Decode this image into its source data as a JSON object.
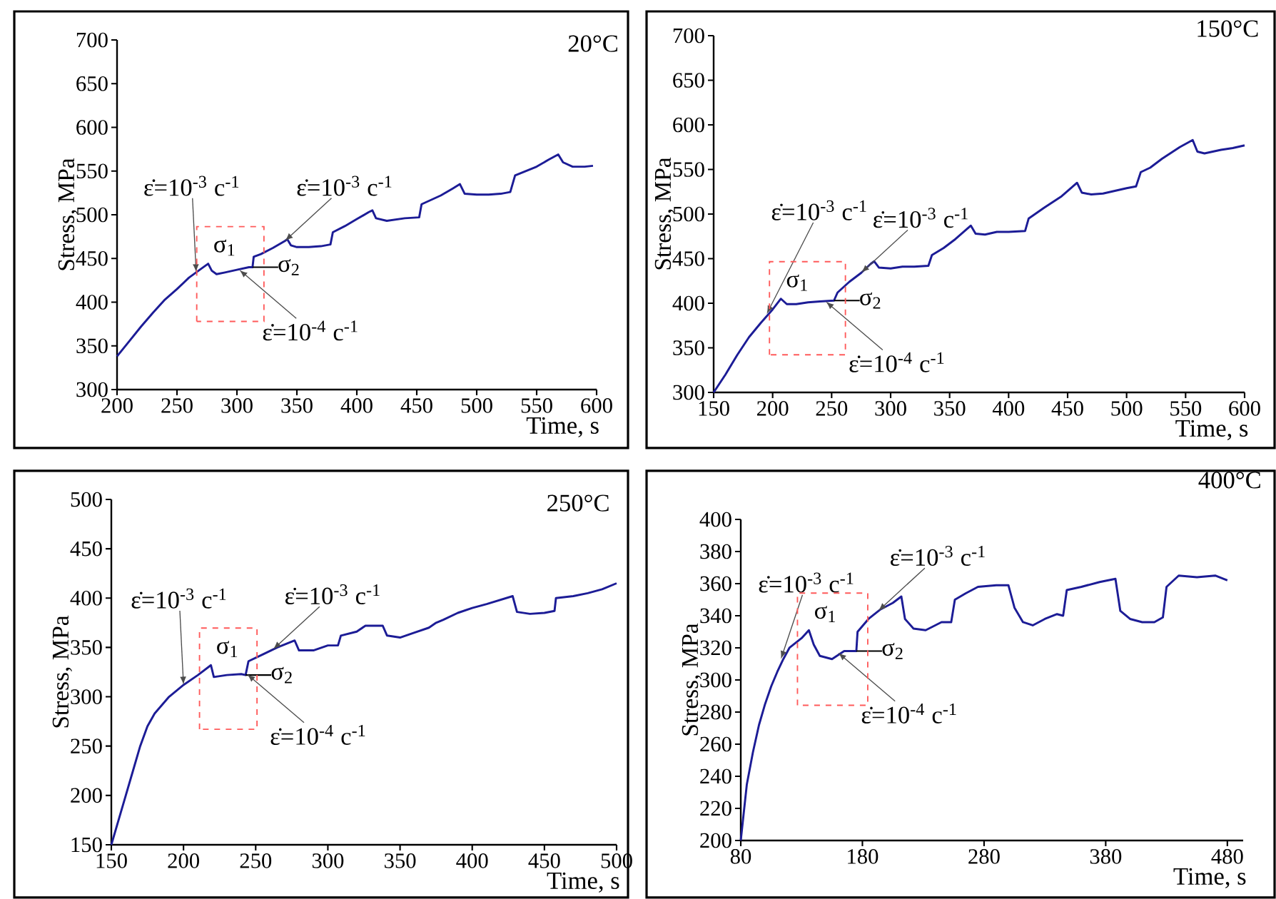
{
  "chart_data": [
    {
      "type": "line",
      "title": "20°C",
      "xlabel": "Time, s",
      "ylabel": "Stress, MPa",
      "color": "#1c1c96",
      "xlim": [
        200,
        600
      ],
      "ylim": [
        300,
        700
      ],
      "xticks": [
        200,
        250,
        300,
        350,
        400,
        450,
        500,
        550,
        600
      ],
      "yticks": [
        300,
        350,
        400,
        450,
        500,
        550,
        600,
        650,
        700
      ],
      "x": [
        200,
        210,
        220,
        230,
        240,
        250,
        260,
        270,
        276,
        279,
        283,
        290,
        300,
        310,
        313,
        314,
        320,
        330,
        340,
        342,
        345,
        350,
        360,
        370,
        378,
        380,
        390,
        400,
        410,
        413,
        416,
        425,
        440,
        452,
        454,
        470,
        480,
        486,
        490,
        500,
        510,
        520,
        528,
        532,
        550,
        560,
        568,
        572,
        580,
        590,
        597
      ],
      "values": [
        338,
        355,
        372,
        388,
        403,
        415,
        428,
        438,
        444,
        436,
        432,
        434,
        437,
        440,
        440,
        452,
        455,
        462,
        470,
        472,
        465,
        463,
        463,
        464,
        466,
        480,
        487,
        495,
        503,
        505,
        496,
        493,
        496,
        497,
        512,
        522,
        530,
        535,
        524,
        523,
        523,
        524,
        526,
        545,
        555,
        563,
        569,
        560,
        555,
        555,
        556
      ],
      "annotations": [
        {
          "text": "ε̇=10$^{-3}$ c$^{-1}$",
          "x": 266,
          "y": 434
        },
        {
          "text": "σ$_{1}$",
          "x": 276,
          "y": 444
        },
        {
          "text": "σ$_{2}$",
          "x": 313,
          "y": 440
        },
        {
          "text": "ε̇=10$^{-4}$ c$^{-1}$",
          "x": 302,
          "y": 437
        },
        {
          "text": "ε̇=10$^{-3}$ c$^{-1}$",
          "x": 340,
          "y": 470
        }
      ]
    },
    {
      "type": "line",
      "title": "150°C",
      "xlabel": "Time, s",
      "ylabel": "Stress, MPa",
      "color": "#1c1c96",
      "xlim": [
        150,
        600
      ],
      "ylim": [
        300,
        700
      ],
      "xticks": [
        150,
        200,
        250,
        300,
        350,
        400,
        450,
        500,
        550,
        600
      ],
      "yticks": [
        300,
        350,
        400,
        450,
        500,
        550,
        600,
        650,
        700
      ],
      "x": [
        150,
        160,
        170,
        180,
        190,
        200,
        207,
        212,
        220,
        230,
        240,
        252,
        255,
        265,
        275,
        283,
        286,
        290,
        300,
        310,
        320,
        332,
        335,
        345,
        355,
        368,
        372,
        380,
        390,
        400,
        414,
        417,
        430,
        445,
        458,
        462,
        470,
        480,
        490,
        500,
        508,
        512,
        520,
        530,
        545,
        556,
        560,
        566,
        580,
        590,
        600
      ],
      "values": [
        300,
        320,
        342,
        362,
        378,
        393,
        405,
        399,
        399,
        401,
        402,
        403,
        412,
        424,
        434,
        444,
        447,
        440,
        439,
        441,
        441,
        442,
        454,
        462,
        472,
        487,
        478,
        477,
        480,
        480,
        481,
        495,
        507,
        520,
        535,
        524,
        522,
        523,
        526,
        529,
        531,
        547,
        552,
        562,
        575,
        583,
        570,
        568,
        572,
        574,
        577
      ],
      "annotations": [
        {
          "text": "ε̇=10$^{-3}$ c$^{-1}$",
          "x": 195,
          "y": 388
        },
        {
          "text": "σ$_{1}$",
          "x": 207,
          "y": 405
        },
        {
          "text": "σ$_{2}$",
          "x": 252,
          "y": 403
        },
        {
          "text": "ε̇=10$^{-4}$ c$^{-1}$",
          "x": 245,
          "y": 402
        },
        {
          "text": "ε̇=10$^{-3}$ c$^{-1}$",
          "x": 275,
          "y": 434
        }
      ]
    },
    {
      "type": "line",
      "title": "250°C",
      "xlabel": "Time, s",
      "ylabel": "Stress, MPa",
      "color": "#1c1c96",
      "xlim": [
        150,
        500
      ],
      "ylim": [
        150,
        500
      ],
      "xticks": [
        150,
        200,
        250,
        300,
        350,
        400,
        450,
        500
      ],
      "yticks": [
        150,
        200,
        250,
        300,
        350,
        400,
        450,
        500
      ],
      "x": [
        150,
        155,
        160,
        165,
        170,
        175,
        180,
        190,
        200,
        210,
        219,
        221,
        230,
        240,
        243,
        245,
        255,
        265,
        277,
        280,
        290,
        300,
        307,
        309,
        320,
        326,
        338,
        341,
        350,
        360,
        370,
        375,
        380,
        390,
        400,
        410,
        428,
        431,
        440,
        450,
        457,
        458,
        470,
        480,
        490,
        500
      ],
      "values": [
        150,
        175,
        200,
        225,
        250,
        270,
        283,
        300,
        312,
        322,
        332,
        320,
        322,
        323,
        322,
        336,
        343,
        350,
        357,
        347,
        347,
        352,
        352,
        362,
        366,
        372,
        372,
        362,
        360,
        365,
        370,
        375,
        378,
        385,
        390,
        394,
        402,
        386,
        384,
        385,
        387,
        400,
        402,
        405,
        409,
        415
      ],
      "annotations": [
        {
          "text": "ε̇=10$^{-3}$ c$^{-1}$",
          "x": 200,
          "y": 312
        },
        {
          "text": "σ$_{1}$",
          "x": 219,
          "y": 332
        },
        {
          "text": "σ$_{2}$",
          "x": 243,
          "y": 322
        },
        {
          "text": "ε̇=10$^{-4}$ c$^{-1}$",
          "x": 244,
          "y": 323
        },
        {
          "text": "ε̇=10$^{-3}$ c$^{-1}$",
          "x": 262,
          "y": 348
        }
      ]
    },
    {
      "type": "line",
      "title": "400°C",
      "xlabel": "Time, s",
      "ylabel": "Stress, MPa",
      "color": "#1c1c96",
      "xlim": [
        80,
        493
      ],
      "ylim": [
        200,
        400
      ],
      "xticks": [
        80,
        180,
        280,
        380,
        480
      ],
      "yticks": [
        200,
        220,
        240,
        260,
        280,
        300,
        320,
        340,
        360,
        380,
        400
      ],
      "x": [
        80,
        85,
        90,
        95,
        100,
        105,
        110,
        115,
        120,
        130,
        136,
        140,
        145,
        155,
        165,
        175,
        176,
        185,
        195,
        205,
        212,
        215,
        222,
        232,
        245,
        253,
        256,
        265,
        275,
        290,
        300,
        305,
        312,
        320,
        330,
        340,
        345,
        348,
        360,
        375,
        388,
        392,
        400,
        410,
        420,
        427,
        430,
        440,
        455,
        470,
        480
      ],
      "values": [
        200,
        235,
        255,
        272,
        285,
        296,
        305,
        313,
        320,
        326,
        331,
        322,
        315,
        313,
        318,
        318,
        330,
        338,
        344,
        348,
        352,
        338,
        332,
        331,
        336,
        336,
        350,
        354,
        358,
        359,
        359,
        345,
        336,
        334,
        338,
        341,
        340,
        356,
        358,
        361,
        363,
        343,
        338,
        336,
        336,
        339,
        358,
        365,
        364,
        365,
        362
      ],
      "annotations": [
        {
          "text": "ε̇=10$^{-3}$ c$^{-1}$",
          "x": 113,
          "y": 313
        },
        {
          "text": "σ$_{1}$",
          "x": 136,
          "y": 331
        },
        {
          "text": "σ$_{2}$",
          "x": 175,
          "y": 318
        },
        {
          "text": "ε̇=10$^{-4}$ c$^{-1}$",
          "x": 160,
          "y": 317
        },
        {
          "text": "ε̇=10$^{-3}$ c$^{-1}$",
          "x": 193,
          "y": 343
        }
      ]
    }
  ]
}
